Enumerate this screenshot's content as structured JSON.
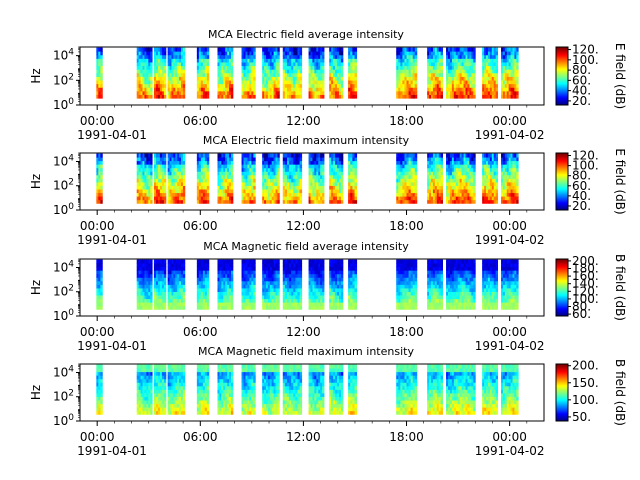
{
  "chart_data": [
    {
      "type": "heatmap",
      "title": "MCA  Electric field average intensity",
      "ylabel": "Hz",
      "yticks": [
        "10^0",
        "10^2",
        "10^4"
      ],
      "ylim_log10": [
        0,
        4.7
      ],
      "xlim_hours": [
        -1,
        26
      ],
      "xticks": [
        "00:00",
        "06:00",
        "12:00",
        "18:00",
        "00:00"
      ],
      "date_start": "1991-04-01",
      "date_end": "1991-04-02",
      "colorbar_label": "E field (dB)",
      "colorbar_ticks": [
        "20.",
        "40.",
        "60.",
        "80.",
        "100.",
        "120."
      ],
      "color_range": [
        12,
        125
      ],
      "data_hours": [
        [
          -0.05,
          0.3
        ],
        [
          2.3,
          3.2
        ],
        [
          3.3,
          4.0
        ],
        [
          4.1,
          5.1
        ],
        [
          5.8,
          6.5
        ],
        [
          7.0,
          7.9
        ],
        [
          8.4,
          9.2
        ],
        [
          9.6,
          10.6
        ],
        [
          10.8,
          11.9
        ],
        [
          12.3,
          13.2
        ],
        [
          13.5,
          14.3
        ],
        [
          14.6,
          15.1
        ],
        [
          17.4,
          18.6
        ],
        [
          19.2,
          20.1
        ],
        [
          20.3,
          22.0
        ],
        [
          22.4,
          23.3
        ],
        [
          23.5,
          24.5
        ]
      ],
      "tone": "high"
    },
    {
      "type": "heatmap",
      "title": "MCA  Electric field maximum intensity",
      "ylabel": "Hz",
      "yticks": [
        "10^0",
        "10^2",
        "10^4"
      ],
      "ylim_log10": [
        0,
        4.7
      ],
      "xlim_hours": [
        -1,
        26
      ],
      "xticks": [
        "00:00",
        "06:00",
        "12:00",
        "18:00",
        "00:00"
      ],
      "date_start": "1991-04-01",
      "date_end": "1991-04-02",
      "colorbar_label": "E field (dB)",
      "colorbar_ticks": [
        "20.",
        "40.",
        "60.",
        "80.",
        "100.",
        "120."
      ],
      "color_range": [
        12,
        125
      ],
      "data_hours": [
        [
          -0.05,
          0.3
        ],
        [
          2.3,
          3.2
        ],
        [
          3.3,
          4.0
        ],
        [
          4.1,
          5.1
        ],
        [
          5.8,
          6.5
        ],
        [
          7.0,
          7.9
        ],
        [
          8.4,
          9.2
        ],
        [
          9.6,
          10.6
        ],
        [
          10.8,
          11.9
        ],
        [
          12.3,
          13.2
        ],
        [
          13.5,
          14.3
        ],
        [
          14.6,
          15.1
        ],
        [
          17.4,
          18.6
        ],
        [
          19.2,
          20.1
        ],
        [
          20.3,
          22.0
        ],
        [
          22.4,
          23.3
        ],
        [
          23.5,
          24.5
        ]
      ],
      "tone": "high"
    },
    {
      "type": "heatmap",
      "title": "MCA  Magnetic field average intensity",
      "ylabel": "Hz",
      "yticks": [
        "10^0",
        "10^2",
        "10^4"
      ],
      "ylim_log10": [
        0,
        4.7
      ],
      "xlim_hours": [
        -1,
        26
      ],
      "xticks": [
        "00:00",
        "06:00",
        "12:00",
        "18:00",
        "00:00"
      ],
      "date_start": "1991-04-01",
      "date_end": "1991-04-02",
      "colorbar_label": "B field (dB)",
      "colorbar_ticks": [
        "60.",
        "80.",
        "100.",
        "120.",
        "140.",
        "160.",
        "180.",
        "200."
      ],
      "color_range": [
        55,
        205
      ],
      "data_hours": [
        [
          -0.05,
          0.3
        ],
        [
          2.3,
          3.2
        ],
        [
          3.3,
          4.0
        ],
        [
          4.1,
          5.1
        ],
        [
          5.8,
          6.5
        ],
        [
          7.0,
          7.9
        ],
        [
          8.4,
          9.2
        ],
        [
          9.6,
          10.6
        ],
        [
          10.8,
          11.9
        ],
        [
          12.3,
          13.2
        ],
        [
          13.5,
          14.3
        ],
        [
          14.6,
          15.1
        ],
        [
          17.4,
          18.6
        ],
        [
          19.2,
          20.1
        ],
        [
          20.3,
          22.0
        ],
        [
          22.4,
          23.3
        ],
        [
          23.5,
          24.5
        ]
      ],
      "tone": "mag"
    },
    {
      "type": "heatmap",
      "title": "MCA  Magnetic field maximum intensity",
      "ylabel": "Hz",
      "yticks": [
        "10^0",
        "10^2",
        "10^4"
      ],
      "ylim_log10": [
        0,
        4.7
      ],
      "xlim_hours": [
        -1,
        26
      ],
      "xticks": [
        "00:00",
        "06:00",
        "12:00",
        "18:00",
        "00:00"
      ],
      "date_start": "1991-04-01",
      "date_end": "1991-04-02",
      "colorbar_label": "B field (dB)",
      "colorbar_ticks": [
        "50.",
        "100.",
        "150.",
        "200."
      ],
      "color_range": [
        38,
        205
      ],
      "data_hours": [
        [
          -0.05,
          0.3
        ],
        [
          2.3,
          3.2
        ],
        [
          3.3,
          4.0
        ],
        [
          4.1,
          5.1
        ],
        [
          5.8,
          6.5
        ],
        [
          7.0,
          7.9
        ],
        [
          8.4,
          9.2
        ],
        [
          9.6,
          10.6
        ],
        [
          10.8,
          11.9
        ],
        [
          12.3,
          13.2
        ],
        [
          13.5,
          14.3
        ],
        [
          14.6,
          15.1
        ],
        [
          17.4,
          18.6
        ],
        [
          19.2,
          20.1
        ],
        [
          20.3,
          22.0
        ],
        [
          22.4,
          23.3
        ],
        [
          23.5,
          24.5
        ]
      ],
      "tone": "magmax"
    }
  ]
}
